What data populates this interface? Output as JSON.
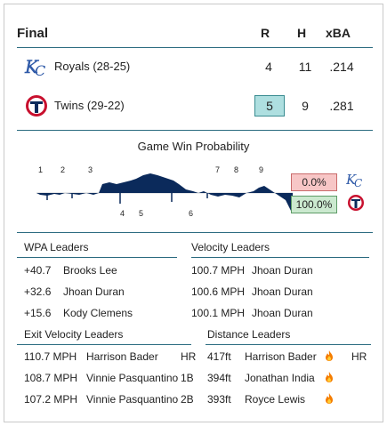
{
  "scoreboard": {
    "status": "Final",
    "columns": [
      "R",
      "H",
      "xBA"
    ],
    "teams": [
      {
        "name": "Royals (28-25)",
        "logo": "kc-royals-logo",
        "R": "4",
        "H": "11",
        "xBA": ".214",
        "winner": false
      },
      {
        "name": "Twins (29-22)",
        "logo": "minnesota-twins-logo",
        "R": "5",
        "H": "9",
        "xBA": ".281",
        "winner": true
      }
    ]
  },
  "win_probability": {
    "title": "Game Win Probability",
    "inning_labels_top": [
      "1",
      "2",
      "3",
      "7",
      "8",
      "9"
    ],
    "inning_labels_bottom": [
      "4",
      "5",
      "6"
    ],
    "kc_probability": "0.0%",
    "min_probability": "100.0%",
    "colors": {
      "kc": "#f7c6c6",
      "min": "#cbe9cf",
      "area": "#0b2a5b"
    }
  },
  "wpa_leaders": {
    "title": "WPA Leaders",
    "rows": [
      {
        "value": "+40.7",
        "player": "Brooks Lee"
      },
      {
        "value": "+32.6",
        "player": "Jhoan Duran"
      },
      {
        "value": "+15.6",
        "player": "Kody Clemens"
      }
    ]
  },
  "velocity_leaders": {
    "title": "Velocity Leaders",
    "rows": [
      {
        "value": "100.7 MPH",
        "player": "Jhoan Duran"
      },
      {
        "value": "100.6 MPH",
        "player": "Jhoan Duran"
      },
      {
        "value": "100.1 MPH",
        "player": "Jhoan Duran"
      }
    ]
  },
  "exit_velocity_leaders": {
    "title": "Exit Velocity Leaders",
    "rows": [
      {
        "value": "110.7 MPH",
        "player": "Harrison Bader",
        "result": "HR"
      },
      {
        "value": "108.7 MPH",
        "player": "Vinnie Pasquantino",
        "result": "1B"
      },
      {
        "value": "107.2 MPH",
        "player": "Vinnie Pasquantino",
        "result": "2B"
      }
    ]
  },
  "distance_leaders": {
    "title": "Distance Leaders",
    "rows": [
      {
        "value": "417ft",
        "player": "Harrison Bader",
        "result": "HR"
      },
      {
        "value": "394ft",
        "player": "Jonathan India",
        "result": ""
      },
      {
        "value": "393ft",
        "player": "Royce Lewis",
        "result": ""
      }
    ]
  }
}
